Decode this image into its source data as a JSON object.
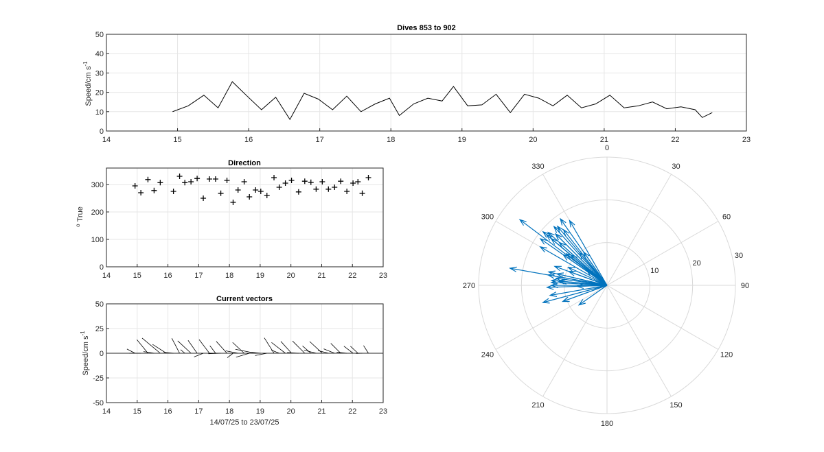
{
  "chart_data": [
    {
      "type": "line",
      "title": "Dives 853 to 902",
      "ylabel": "Speed/cm s",
      "ylabel_exp": "-1",
      "xlim": [
        14,
        23
      ],
      "ylim": [
        0,
        50
      ],
      "xticks": [
        14,
        15,
        16,
        17,
        18,
        19,
        20,
        21,
        22,
        23
      ],
      "yticks": [
        0,
        10,
        20,
        30,
        40,
        50
      ],
      "grid": true,
      "series": [
        {
          "color": "#000000",
          "x": [
            14.93,
            15.15,
            15.37,
            15.57,
            15.77,
            15.98,
            16.18,
            16.38,
            16.58,
            16.78,
            16.98,
            17.18,
            17.38,
            17.58,
            17.78,
            17.98,
            18.12,
            18.32,
            18.52,
            18.72,
            18.88,
            19.08,
            19.28,
            19.48,
            19.68,
            19.88,
            20.08,
            20.28,
            20.48,
            20.68,
            20.88,
            21.08,
            21.28,
            21.48,
            21.68,
            21.88,
            22.08,
            22.28,
            22.38,
            22.52
          ],
          "y": [
            10,
            13,
            18.5,
            12,
            25.5,
            18,
            11,
            17.5,
            6,
            19.5,
            16.5,
            11,
            18,
            10,
            14,
            17,
            8,
            14,
            17,
            15.5,
            23,
            13,
            13.5,
            19,
            9.5,
            19,
            17,
            13,
            18.5,
            12,
            14,
            18.5,
            12,
            13,
            15,
            11.5,
            12.5,
            11,
            7,
            9.5
          ]
        }
      ]
    },
    {
      "type": "scatter",
      "title": "Direction",
      "ylabel": "True",
      "ylabel_prefix": "o",
      "xlim": [
        14,
        23
      ],
      "ylim": [
        0,
        360
      ],
      "xticks": [
        14,
        15,
        16,
        17,
        18,
        19,
        20,
        21,
        22,
        23
      ],
      "yticks": [
        0,
        100,
        200,
        300
      ],
      "grid": true,
      "marker": "+",
      "series": [
        {
          "color": "#000000",
          "x": [
            14.93,
            15.12,
            15.35,
            15.55,
            15.75,
            16.18,
            16.38,
            16.55,
            16.75,
            16.95,
            17.15,
            17.35,
            17.55,
            17.72,
            17.92,
            18.12,
            18.28,
            18.48,
            18.65,
            18.85,
            19.02,
            19.22,
            19.45,
            19.62,
            19.82,
            20.02,
            20.25,
            20.45,
            20.65,
            20.82,
            21.02,
            21.22,
            21.42,
            21.62,
            21.82,
            22.02,
            22.18,
            22.32,
            22.52
          ],
          "y": [
            295,
            270,
            318,
            278,
            307,
            275,
            330,
            307,
            310,
            322,
            250,
            320,
            320,
            268,
            315,
            235,
            280,
            310,
            255,
            280,
            275,
            260,
            325,
            290,
            305,
            315,
            273,
            312,
            308,
            283,
            310,
            283,
            290,
            312,
            275,
            305,
            310,
            268,
            325
          ]
        }
      ]
    },
    {
      "type": "quiver",
      "title": "Current vectors",
      "ylabel": "Speed/cm s",
      "ylabel_exp": "-1",
      "xlabel": "14/07/25 to 23/07/25",
      "xlim": [
        14,
        23
      ],
      "ylim": [
        -50,
        50
      ],
      "xticks": [
        14,
        15,
        16,
        17,
        18,
        19,
        20,
        21,
        22,
        23
      ],
      "yticks": [
        -50,
        -25,
        0,
        25,
        50
      ],
      "grid": true,
      "origins_x": [
        14.93,
        15.12,
        15.35,
        15.55,
        15.75,
        15.95,
        16.18,
        16.38,
        16.55,
        16.75,
        16.95,
        17.15,
        17.35,
        17.55,
        17.72,
        17.92,
        18.12,
        18.28,
        18.48,
        18.65,
        18.85,
        19.02,
        19.22,
        19.45,
        19.62,
        19.82,
        20.02,
        20.25,
        20.45,
        20.65,
        20.82,
        21.02,
        21.22,
        21.42,
        21.62,
        21.82,
        22.02,
        22.18,
        22.32,
        22.52
      ],
      "speed": [
        10,
        13,
        18.5,
        12,
        25.5,
        18,
        11,
        17.5,
        6,
        19.5,
        16.5,
        11,
        18,
        10,
        14,
        17,
        8,
        14,
        17,
        15.5,
        23,
        13,
        13.5,
        19,
        9.5,
        19,
        17,
        13,
        18.5,
        12,
        14,
        18.5,
        12,
        13,
        15,
        11.5,
        12.5,
        11,
        7,
        9.5
      ],
      "direction": [
        295,
        270,
        318,
        278,
        307,
        300,
        275,
        330,
        307,
        310,
        322,
        250,
        320,
        320,
        268,
        315,
        235,
        280,
        310,
        255,
        280,
        275,
        260,
        325,
        290,
        305,
        315,
        273,
        312,
        308,
        283,
        310,
        283,
        290,
        312,
        275,
        305,
        310,
        268,
        325
      ]
    },
    {
      "type": "polar",
      "angle_labels": [
        "0",
        "30",
        "60",
        "90",
        "120",
        "150",
        "180",
        "210",
        "240",
        "270",
        "300",
        "330"
      ],
      "angle_values": [
        0,
        30,
        60,
        90,
        120,
        150,
        180,
        210,
        240,
        270,
        300,
        330
      ],
      "radial_ticks": [
        10,
        20,
        30
      ],
      "rlim": [
        0,
        30
      ],
      "arrow_color": "#0072BD",
      "direction": [
        295,
        270,
        318,
        278,
        307,
        300,
        275,
        330,
        307,
        310,
        322,
        250,
        320,
        320,
        268,
        315,
        235,
        280,
        310,
        255,
        280,
        275,
        260,
        325,
        290,
        305,
        315,
        273,
        312,
        308,
        283,
        310,
        283,
        290,
        312,
        275,
        305,
        310,
        268,
        325
      ],
      "speed": [
        10,
        13,
        18.5,
        12,
        25.5,
        18,
        11,
        17.5,
        6,
        19.5,
        16.5,
        11,
        18,
        10,
        14,
        17,
        8,
        14,
        17,
        15.5,
        23,
        13,
        13.5,
        19,
        9.5,
        19,
        17,
        13,
        18.5,
        12,
        14,
        18.5,
        12,
        13,
        15,
        11.5,
        12.5,
        11,
        7,
        9.5
      ]
    }
  ]
}
